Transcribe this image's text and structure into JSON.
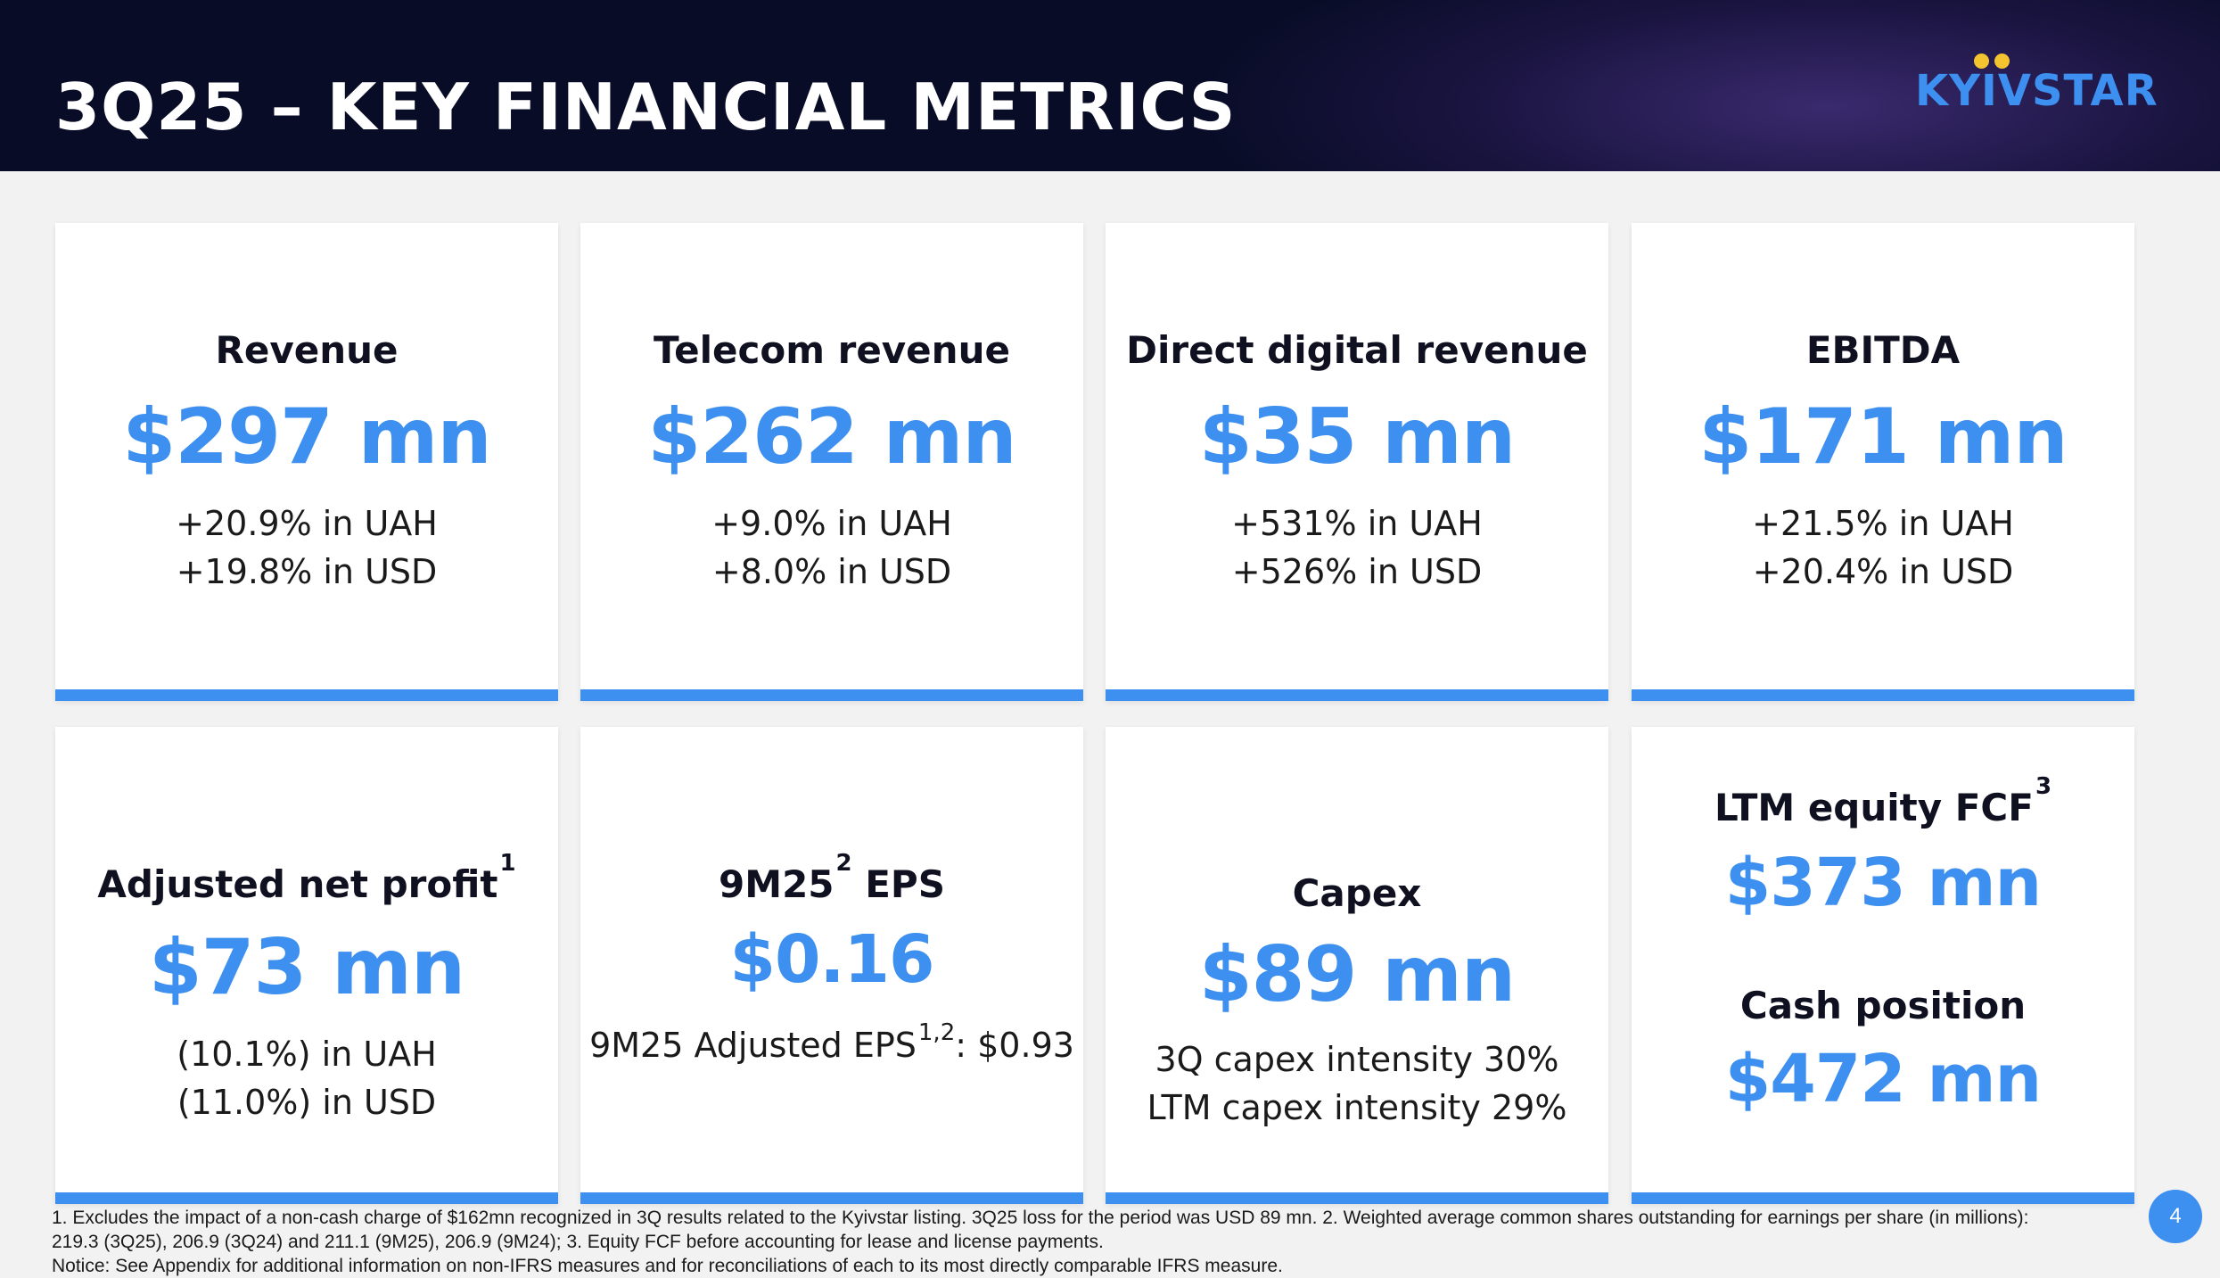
{
  "header": {
    "title": "3Q25 – KEY FINANCIAL METRICS",
    "logo_text": "KYIVSTAR"
  },
  "cards": {
    "revenue": {
      "label": "Revenue",
      "value": "$297 mn",
      "line1": "+20.9% in UAH",
      "line2": "+19.8% in USD"
    },
    "telecom": {
      "label": "Telecom revenue",
      "value": "$262 mn",
      "line1": "+9.0% in UAH",
      "line2": "+8.0% in USD"
    },
    "digital": {
      "label": "Direct digital revenue",
      "value": "$35 mn",
      "line1": "+531% in UAH",
      "line2": "+526% in USD"
    },
    "ebitda": {
      "label": "EBITDA",
      "value": "$171 mn",
      "line1": "+21.5% in UAH",
      "line2": "+20.4% in USD"
    },
    "net_profit": {
      "label": "Adjusted net profit",
      "footnote": "1",
      "value": "$73 mn",
      "line1": "(10.1%) in UAH",
      "line2": "(11.0%) in USD"
    },
    "eps": {
      "label_prefix": "9M25",
      "label_footnote": "2",
      "label_suffix": " EPS",
      "value": "$0.16",
      "sub_prefix": "9M25 Adjusted EPS",
      "sub_footnote": "1,2",
      "sub_suffix": ": $0.93"
    },
    "capex": {
      "label": "Capex",
      "value": "$89 mn",
      "line1": "3Q capex intensity 30%",
      "line2": "LTM capex intensity 29%"
    },
    "fcf_cash": {
      "label1": "LTM equity FCF",
      "footnote": "3",
      "value1": "$373 mn",
      "label2": "Cash position",
      "value2": "$472 mn"
    }
  },
  "footnotes": {
    "line1": "1. Excludes the impact of a non-cash charge of $162mn recognized in 3Q results related to the Kyivstar listing. 3Q25 loss for the period was USD 89 mn. 2. Weighted average common shares outstanding for earnings per share (in millions):",
    "line2": "219.3 (3Q25), 206.9 (3Q24) and 211.1 (9M25), 206.9 (9M24); 3. Equity FCF before accounting for lease and license payments.",
    "line3": "Notice: See Appendix for additional information on non-IFRS measures and for reconciliations of each to its most directly comparable IFRS measure."
  },
  "page_number": "4",
  "colors": {
    "accent": "#3d8ff0",
    "header_bg": "#080c26",
    "logo_dot": "#f4c430"
  }
}
